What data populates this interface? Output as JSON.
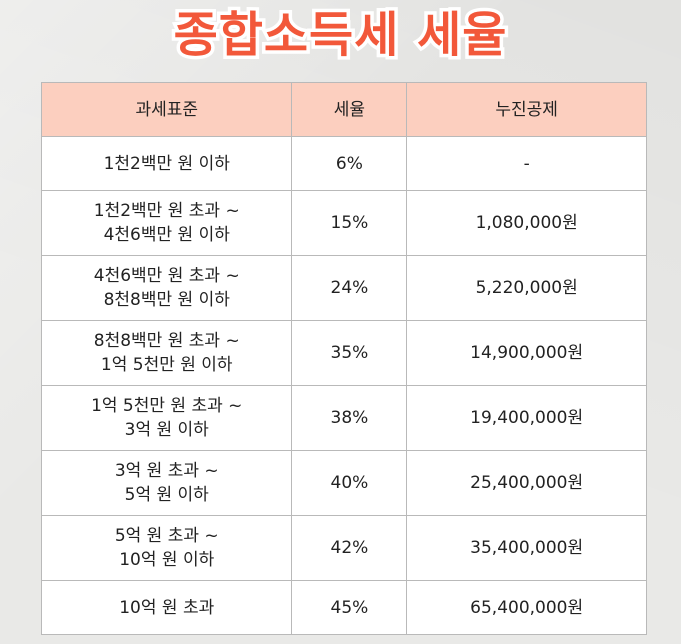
{
  "title": "종합소득세 세율",
  "table": {
    "headers": [
      "과세표준",
      "세율",
      "누진공제"
    ],
    "rows": [
      {
        "bracket": [
          "1천2백만 원 이하"
        ],
        "rate": "6%",
        "deduction": "-"
      },
      {
        "bracket": [
          "1천2백만 원 초과 ~",
          "4천6백만 원 이하"
        ],
        "rate": "15%",
        "deduction": "1,080,000원"
      },
      {
        "bracket": [
          "4천6백만 원 초과 ~",
          "8천8백만 원 이하"
        ],
        "rate": "24%",
        "deduction": "5,220,000원"
      },
      {
        "bracket": [
          "8천8백만 원 초과 ~",
          "1억 5천만 원 이하"
        ],
        "rate": "35%",
        "deduction": "14,900,000원"
      },
      {
        "bracket": [
          "1억 5천만 원 초과 ~",
          "3억 원 이하"
        ],
        "rate": "38%",
        "deduction": "19,400,000원"
      },
      {
        "bracket": [
          "3억 원 초과 ~",
          "5억 원 이하"
        ],
        "rate": "40%",
        "deduction": "25,400,000원"
      },
      {
        "bracket": [
          "5억 원 초과 ~",
          "10억 원 이하"
        ],
        "rate": "42%",
        "deduction": "35,400,000원"
      },
      {
        "bracket": [
          "10억 원 초과"
        ],
        "rate": "45%",
        "deduction": "65,400,000원"
      }
    ]
  },
  "colors": {
    "title": "#f2583a",
    "title_outline": "#ffffff",
    "header_bg": "#fccfbf",
    "cell_bg": "#ffffff",
    "border": "#b9b9b9",
    "page_bg": "#e9e9e7"
  }
}
